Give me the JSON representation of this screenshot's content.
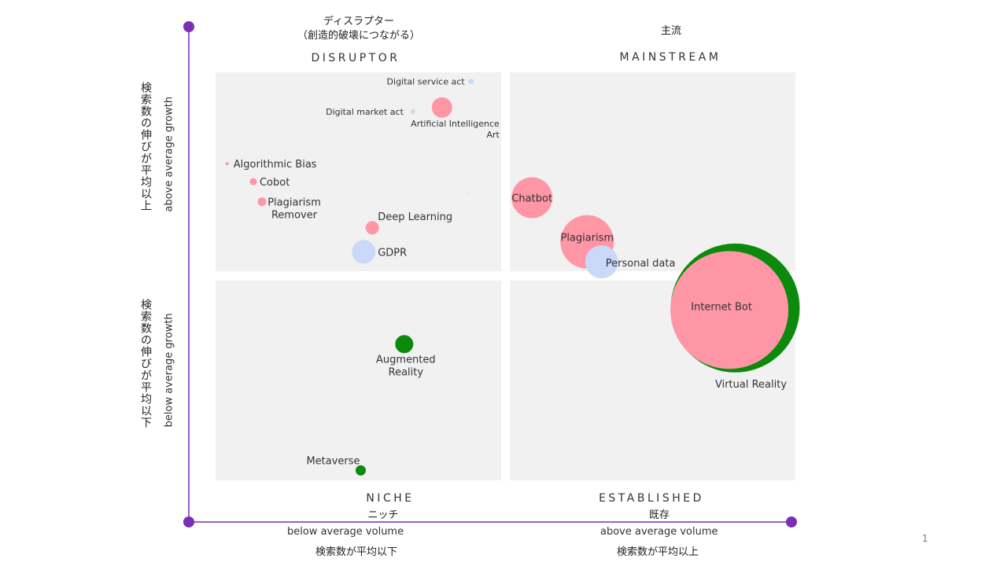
{
  "quadrants": {
    "disruptor": {
      "title": "DISRUPTOR",
      "jp": "ディスラプター",
      "jp_sub": "（創造的破壊につながる）"
    },
    "mainstream": {
      "title": "MAINSTREAM",
      "jp": "主流"
    },
    "niche": {
      "title": "NICHE",
      "jp": "ニッチ"
    },
    "established": {
      "title": "ESTABLISHED",
      "jp": "既存"
    }
  },
  "axes": {
    "y_above_en": "above average growth",
    "y_above_jp": "検索数の伸びが平均以上",
    "y_below_en": "below average growth",
    "y_below_jp": "検索数の伸びが平均以下",
    "x_below_en": "below average volume",
    "x_below_jp": "検索数が平均以下",
    "x_above_en": "above average volume",
    "x_above_jp": "検索数が平均以上"
  },
  "page_number": "1",
  "colors": {
    "axis": "#7b2fb5",
    "quadrant_bg": "#f1f1f1",
    "pink": "#ff96a6",
    "blue": "#c9d9f7",
    "green": "#0b8a0b"
  },
  "chart_data": {
    "type": "scatter",
    "x_axis": {
      "below": "below average volume",
      "above": "above average volume"
    },
    "y_axis": {
      "below": "below average growth",
      "above": "above average growth"
    },
    "points": [
      {
        "label": "Digital service act",
        "x": 0.88,
        "y": 0.97,
        "size": 0.02,
        "color": "blue"
      },
      {
        "label": "Digital market act",
        "x": 0.68,
        "y": 0.82,
        "size": 0.02,
        "color": "blue"
      },
      {
        "label": "Artificial Intelligence Art",
        "x": 0.78,
        "y": 0.84,
        "size": 0.08,
        "color": "pink"
      },
      {
        "label": "Algorithmic Bias",
        "x": 0.04,
        "y": 0.56,
        "size": 0.015,
        "color": "pink"
      },
      {
        "label": "Cobot",
        "x": 0.13,
        "y": 0.47,
        "size": 0.03,
        "color": "pink"
      },
      {
        "label": "Plagiarism Remover",
        "x": 0.16,
        "y": 0.37,
        "size": 0.04,
        "color": "pink"
      },
      {
        "label": "",
        "x": 0.87,
        "y": 0.41,
        "size": 0.005,
        "color": "blue"
      },
      {
        "label": "Deep Learning",
        "x": 0.54,
        "y": 0.24,
        "size": 0.06,
        "color": "pink"
      },
      {
        "label": "GDPR",
        "x": 0.51,
        "y": 0.12,
        "size": 0.1,
        "color": "blue"
      },
      {
        "label": "Chatbot",
        "x": 1.09,
        "y": 0.39,
        "size": 0.16,
        "color": "pink"
      },
      {
        "label": "Plagiarism",
        "x": 1.28,
        "y": 0.17,
        "size": 0.22,
        "color": "pink"
      },
      {
        "label": "Personal data",
        "x": 1.33,
        "y": 0.07,
        "size": 0.13,
        "color": "blue"
      },
      {
        "label": "Augmented Reality",
        "x": 0.65,
        "y": -0.34,
        "size": 0.07,
        "color": "green"
      },
      {
        "label": "Metaverse",
        "x": 0.5,
        "y": -0.97,
        "size": 0.04,
        "color": "green"
      },
      {
        "label": "Virtual Reality",
        "x": 1.79,
        "y": -0.16,
        "size": 0.5,
        "color": "green"
      },
      {
        "label": "Internet Bot",
        "x": 1.77,
        "y": -0.17,
        "size": 0.46,
        "color": "pink"
      }
    ]
  }
}
